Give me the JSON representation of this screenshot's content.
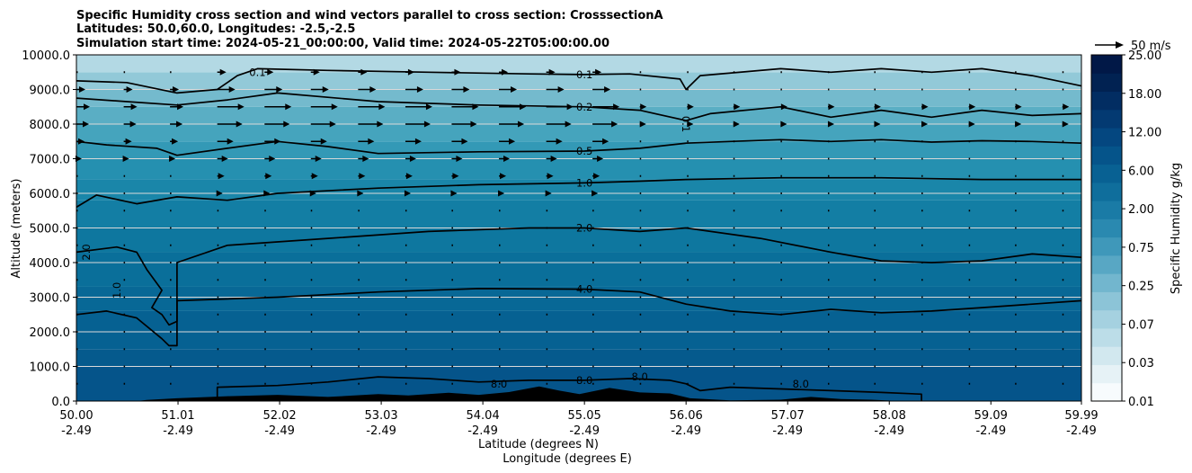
{
  "chart_data": {
    "type": "heatmap",
    "title_lines": [
      "Specific Humidity cross section and wind vectors parallel to cross section: CrosssectionA",
      "Latitudes: 50.0,60.0, Longitudes: -2.5,-2.5",
      "Simulation start time: 2024-05-21_00:00:00, Valid time: 2024-05-22T05:00:00.00"
    ],
    "ylabel": "Altitude (meters)",
    "xlabel_lat": "Latitude (degrees N)",
    "xlabel_lon": "Longitude (degrees E)",
    "ylim": [
      0,
      10000
    ],
    "xlim": [
      50.0,
      59.99
    ],
    "y_ticks": [
      "0.0",
      "1000.0",
      "2000.0",
      "3000.0",
      "4000.0",
      "5000.0",
      "6000.0",
      "7000.0",
      "8000.0",
      "9000.0",
      "10000.0"
    ],
    "x_ticks_lat": [
      "50.00",
      "51.01",
      "52.02",
      "53.03",
      "54.04",
      "55.05",
      "56.06",
      "57.07",
      "58.08",
      "59.09",
      "59.99"
    ],
    "x_ticks_lon": [
      "-2.49",
      "-2.49",
      "-2.49",
      "-2.49",
      "-2.49",
      "-2.49",
      "-2.49",
      "-2.49",
      "-2.49",
      "-2.49",
      "-2.49"
    ],
    "colorbar": {
      "label": "Specific Humidity g/kg",
      "ticks": [
        "0.01",
        "0.03",
        "0.07",
        "0.25",
        "0.75",
        "2.00",
        "6.00",
        "12.00",
        "18.00",
        "25.00"
      ],
      "colors": [
        "#f7fbfd",
        "#e6f2f6",
        "#d2e8ef",
        "#bcdde8",
        "#a5d1e0",
        "#8cc4d7",
        "#72b6ce",
        "#58a7c4",
        "#3f98ba",
        "#2a89b0",
        "#1a7ba6",
        "#0f6e9c",
        "#086193",
        "#05548a",
        "#044780",
        "#033a72",
        "#022d62",
        "#012252",
        "#011847"
      ]
    },
    "bands": [
      {
        "alt": 0,
        "color": "#05548a"
      },
      {
        "alt": 1000,
        "color": "#055a8d"
      },
      {
        "alt": 1500,
        "color": "#066192"
      },
      {
        "alt": 2600,
        "color": "#086896"
      },
      {
        "alt": 3300,
        "color": "#0a6f9a"
      },
      {
        "alt": 4300,
        "color": "#0e779f"
      },
      {
        "alt": 5000,
        "color": "#137ea4"
      },
      {
        "alt": 5800,
        "color": "#1a86a9"
      },
      {
        "alt": 6400,
        "color": "#2590b0"
      },
      {
        "alt": 7000,
        "color": "#3399b6"
      },
      {
        "alt": 7500,
        "color": "#45a4bd"
      },
      {
        "alt": 8000,
        "color": "#5aaec4"
      },
      {
        "alt": 8500,
        "color": "#74bacd"
      },
      {
        "alt": 9000,
        "color": "#92c9d8"
      },
      {
        "alt": 9500,
        "color": "#b3d9e4"
      }
    ],
    "contours": [
      {
        "level": "0.1",
        "label_lat": 55.05,
        "points": [
          [
            50.0,
            9250
          ],
          [
            50.5,
            9200
          ],
          [
            51.0,
            8900
          ],
          [
            51.4,
            9000
          ],
          [
            51.6,
            9400
          ],
          [
            51.8,
            9600
          ],
          [
            52.5,
            9550
          ],
          [
            53.5,
            9500
          ],
          [
            54.5,
            9450
          ],
          [
            55.05,
            9430
          ],
          [
            55.5,
            9450
          ],
          [
            56.0,
            9300
          ],
          [
            56.06,
            9000
          ],
          [
            56.2,
            9400
          ],
          [
            57.0,
            9600
          ],
          [
            57.5,
            9500
          ],
          [
            58.0,
            9600
          ],
          [
            58.5,
            9500
          ],
          [
            59.0,
            9600
          ],
          [
            59.5,
            9400
          ],
          [
            59.99,
            9100
          ]
        ]
      },
      {
        "level": "0.2",
        "label_lat": 55.05,
        "points": [
          [
            50.0,
            8750
          ],
          [
            50.5,
            8650
          ],
          [
            51.0,
            8550
          ],
          [
            51.5,
            8700
          ],
          [
            52.0,
            8900
          ],
          [
            53.0,
            8650
          ],
          [
            54.0,
            8550
          ],
          [
            55.05,
            8500
          ],
          [
            55.6,
            8400
          ],
          [
            56.06,
            8100
          ],
          [
            56.3,
            8300
          ],
          [
            57.0,
            8500
          ],
          [
            57.5,
            8200
          ],
          [
            58.0,
            8400
          ],
          [
            58.5,
            8200
          ],
          [
            59.0,
            8400
          ],
          [
            59.5,
            8250
          ],
          [
            59.99,
            8300
          ]
        ]
      },
      {
        "level": "0.5",
        "label_lat": 55.05,
        "points": [
          [
            50.0,
            7500
          ],
          [
            50.3,
            7400
          ],
          [
            50.8,
            7300
          ],
          [
            51.0,
            7100
          ],
          [
            51.5,
            7300
          ],
          [
            52.0,
            7500
          ],
          [
            52.5,
            7350
          ],
          [
            53.0,
            7150
          ],
          [
            54.0,
            7200
          ],
          [
            55.05,
            7220
          ],
          [
            55.6,
            7300
          ],
          [
            56.06,
            7450
          ],
          [
            56.5,
            7500
          ],
          [
            57.0,
            7550
          ],
          [
            57.5,
            7500
          ],
          [
            58.0,
            7550
          ],
          [
            58.5,
            7480
          ],
          [
            59.0,
            7520
          ],
          [
            59.5,
            7500
          ],
          [
            59.99,
            7450
          ]
        ]
      },
      {
        "level": "1.0",
        "label_lat": 55.05,
        "points": [
          [
            50.0,
            5600
          ],
          [
            50.2,
            5950
          ],
          [
            50.6,
            5700
          ],
          [
            51.0,
            5900
          ],
          [
            51.5,
            5800
          ],
          [
            52.0,
            6000
          ],
          [
            53.0,
            6150
          ],
          [
            54.0,
            6250
          ],
          [
            55.05,
            6300
          ],
          [
            55.6,
            6350
          ],
          [
            56.06,
            6400
          ],
          [
            57.0,
            6450
          ],
          [
            58.0,
            6450
          ],
          [
            59.0,
            6400
          ],
          [
            59.99,
            6400
          ]
        ]
      },
      {
        "level": "2.0",
        "label_lat": 55.05,
        "points": [
          [
            50.0,
            4300
          ],
          [
            50.4,
            4450
          ],
          [
            50.6,
            4300
          ],
          [
            50.7,
            3800
          ],
          [
            50.85,
            3200
          ],
          [
            50.75,
            2700
          ],
          [
            50.85,
            2500
          ],
          [
            50.92,
            2200
          ],
          [
            51.0,
            2300
          ],
          [
            51.0,
            4000
          ],
          [
            51.5,
            4500
          ],
          [
            52.5,
            4700
          ],
          [
            53.5,
            4900
          ],
          [
            54.5,
            5000
          ],
          [
            55.05,
            5000
          ],
          [
            55.6,
            4900
          ],
          [
            56.06,
            5000
          ],
          [
            56.8,
            4700
          ],
          [
            57.5,
            4300
          ],
          [
            58.0,
            4050
          ],
          [
            58.5,
            4000
          ],
          [
            59.0,
            4050
          ],
          [
            59.5,
            4250
          ],
          [
            59.99,
            4150
          ]
        ]
      },
      {
        "level": "4.0",
        "label_lat": 55.05,
        "points": [
          [
            50.0,
            2500
          ],
          [
            50.3,
            2600
          ],
          [
            50.6,
            2400
          ],
          [
            50.85,
            1800
          ],
          [
            50.92,
            1600
          ],
          [
            51.0,
            1600
          ],
          [
            51.0,
            2900
          ],
          [
            52.0,
            3000
          ],
          [
            53.0,
            3150
          ],
          [
            54.0,
            3250
          ],
          [
            55.05,
            3230
          ],
          [
            55.6,
            3150
          ],
          [
            56.06,
            2800
          ],
          [
            56.5,
            2600
          ],
          [
            57.0,
            2500
          ],
          [
            57.5,
            2650
          ],
          [
            58.0,
            2550
          ],
          [
            58.5,
            2600
          ],
          [
            59.0,
            2700
          ],
          [
            59.99,
            2900
          ]
        ]
      },
      {
        "level": "8.0",
        "label_lat": 55.05,
        "points": [
          [
            51.4,
            0
          ],
          [
            51.4,
            400
          ],
          [
            52.0,
            450
          ],
          [
            52.5,
            550
          ],
          [
            53.0,
            700
          ],
          [
            53.5,
            650
          ],
          [
            54.0,
            550
          ],
          [
            54.5,
            600
          ],
          [
            55.05,
            600
          ],
          [
            55.5,
            650
          ],
          [
            55.9,
            600
          ],
          [
            56.06,
            500
          ],
          [
            56.2,
            300
          ],
          [
            56.5,
            400
          ],
          [
            57.0,
            350
          ],
          [
            57.5,
            300
          ],
          [
            58.0,
            250
          ],
          [
            58.4,
            200
          ],
          [
            58.4,
            0
          ]
        ]
      }
    ],
    "extra_labels": [
      {
        "text": "0.1",
        "lat": 51.8,
        "alt": 9500,
        "rot": 0
      },
      {
        "text": "0.1",
        "lat": 56.06,
        "alt": 8000,
        "rot": 90
      },
      {
        "text": "2.0",
        "lat": 50.1,
        "alt": 4300,
        "rot": -90
      },
      {
        "text": "1.0",
        "lat": 50.4,
        "alt": 3200,
        "rot": -90
      },
      {
        "text": "8.0",
        "lat": 54.2,
        "alt": 500,
        "rot": 0
      },
      {
        "text": "8.0",
        "lat": 55.6,
        "alt": 700,
        "rot": 0
      },
      {
        "text": "8.0",
        "lat": 57.2,
        "alt": 500,
        "rot": 0
      }
    ],
    "wind": {
      "reference": "50 m/s",
      "rows": [
        9500,
        9000,
        8500,
        8000,
        7500,
        7000,
        6500,
        6000,
        5500,
        5000,
        4500,
        4000,
        3500,
        3000,
        2500,
        2000,
        1500,
        1000,
        500
      ],
      "cols": [
        50.0,
        50.47,
        50.93,
        51.4,
        51.87,
        52.33,
        52.8,
        53.27,
        53.73,
        54.2,
        54.67,
        55.13,
        55.6,
        56.07,
        56.53,
        57.0,
        57.47,
        57.93,
        58.4,
        58.87,
        59.33,
        59.8
      ],
      "speed_profile": [
        10,
        20,
        30,
        28,
        18,
        12,
        8,
        6,
        4,
        3,
        2,
        2,
        2,
        3,
        3,
        3,
        2,
        2,
        2
      ]
    }
  }
}
